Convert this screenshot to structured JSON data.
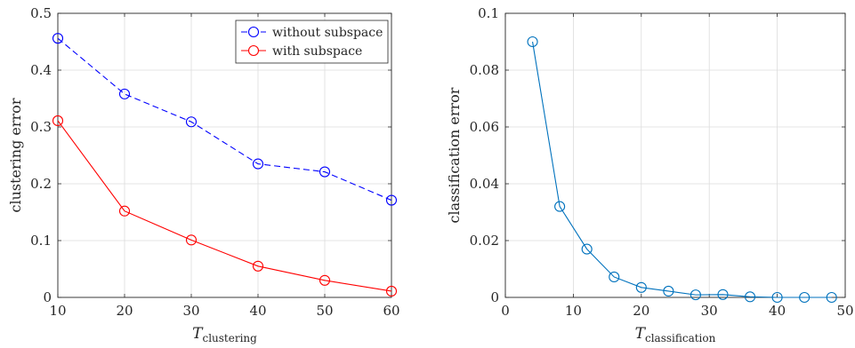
{
  "chart_data": [
    {
      "type": "line",
      "xlabel": "T",
      "xlabel_sub": "clustering",
      "ylabel": "clustering error",
      "xlim": [
        10,
        60
      ],
      "ylim": [
        0,
        0.5
      ],
      "xticks": [
        10,
        20,
        30,
        40,
        50,
        60
      ],
      "yticks": [
        0,
        0.1,
        0.2,
        0.3,
        0.4,
        0.5
      ],
      "xtick_labels": [
        "10",
        "20",
        "30",
        "40",
        "50",
        "60"
      ],
      "ytick_labels": [
        "0",
        "0.1",
        "0.2",
        "0.3",
        "0.4",
        "0.5"
      ],
      "grid": true,
      "legend_position": "top-right",
      "series": [
        {
          "name": "without subspace",
          "color": "#0000ff",
          "line_style": "dashed",
          "marker": "circle",
          "x": [
            10,
            20,
            30,
            40,
            50,
            60
          ],
          "y": [
            0.456,
            0.358,
            0.309,
            0.235,
            0.221,
            0.171
          ]
        },
        {
          "name": "with subspace",
          "color": "#ff0000",
          "line_style": "solid",
          "marker": "circle",
          "x": [
            10,
            20,
            30,
            40,
            50,
            60
          ],
          "y": [
            0.311,
            0.152,
            0.101,
            0.055,
            0.03,
            0.011
          ]
        }
      ]
    },
    {
      "type": "line",
      "xlabel": "T",
      "xlabel_sub": "classification",
      "ylabel": "classification error",
      "xlim": [
        0,
        50
      ],
      "ylim": [
        0,
        0.1
      ],
      "xticks": [
        0,
        10,
        20,
        30,
        40,
        50
      ],
      "yticks": [
        0,
        0.02,
        0.04,
        0.06,
        0.08,
        0.1
      ],
      "xtick_labels": [
        "0",
        "10",
        "20",
        "30",
        "40",
        "50"
      ],
      "ytick_labels": [
        "0",
        "0.02",
        "0.04",
        "0.06",
        "0.08",
        "0.1"
      ],
      "grid": true,
      "series": [
        {
          "color": "#0072bd",
          "line_style": "solid",
          "marker": "circle",
          "x": [
            4,
            8,
            12,
            16,
            20,
            24,
            28,
            32,
            36,
            40,
            44,
            48
          ],
          "y": [
            0.09,
            0.032,
            0.017,
            0.0072,
            0.0035,
            0.0022,
            0.0009,
            0.001,
            0.0002,
            0.0,
            0.0,
            0.0
          ]
        }
      ]
    }
  ]
}
